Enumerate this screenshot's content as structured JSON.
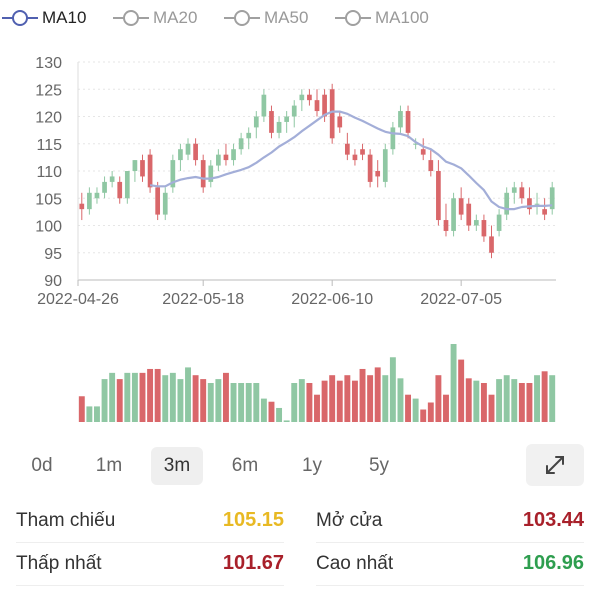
{
  "legend": [
    {
      "label": "MA10",
      "active": true
    },
    {
      "label": "MA20",
      "active": false
    },
    {
      "label": "MA50",
      "active": false
    },
    {
      "label": "MA100",
      "active": false
    }
  ],
  "colors": {
    "up": "#8fc7a3",
    "down": "#d9676a",
    "ma": "#a3aed8",
    "legend_active": "#5060b0",
    "legend_inactive": "#a0a0a0"
  },
  "chart_data": {
    "type": "candlestick",
    "ylim": [
      90,
      130
    ],
    "y_ticks": [
      90,
      95,
      100,
      105,
      110,
      115,
      120,
      125,
      130
    ],
    "x_tick_labels": [
      "2022-04-26",
      "2022-05-18",
      "2022-06-10",
      "2022-07-05"
    ],
    "x_tick_index": [
      0,
      16,
      33,
      50
    ],
    "candles": [
      [
        104,
        106,
        101,
        103
      ],
      [
        103,
        107,
        102,
        106
      ],
      [
        105,
        107,
        104,
        106
      ],
      [
        106,
        109,
        105,
        108
      ],
      [
        108,
        110,
        107,
        109
      ],
      [
        108,
        109,
        104,
        105
      ],
      [
        105,
        110,
        104,
        110
      ],
      [
        110,
        112,
        108,
        112
      ],
      [
        112,
        113,
        108,
        109
      ],
      [
        113,
        114,
        106,
        107
      ],
      [
        107,
        108,
        101,
        102
      ],
      [
        102,
        107,
        101,
        106
      ],
      [
        107,
        113,
        106,
        112
      ],
      [
        112,
        115,
        110,
        114
      ],
      [
        113,
        116,
        112,
        115
      ],
      [
        115,
        116,
        111,
        112
      ],
      [
        112,
        113,
        106,
        107
      ],
      [
        108,
        112,
        107,
        111
      ],
      [
        111,
        114,
        110,
        113
      ],
      [
        113,
        115,
        111,
        112
      ],
      [
        112,
        115,
        111,
        114
      ],
      [
        114,
        117,
        113,
        116
      ],
      [
        116,
        118,
        114,
        117
      ],
      [
        118,
        121,
        116,
        120
      ],
      [
        120,
        125,
        119,
        124
      ],
      [
        121,
        122,
        116,
        117
      ],
      [
        117,
        120,
        116,
        119
      ],
      [
        119,
        121,
        117,
        120
      ],
      [
        120,
        123,
        118,
        122
      ],
      [
        123,
        125,
        121,
        124
      ],
      [
        124,
        125,
        122,
        123
      ],
      [
        123,
        125,
        120,
        121
      ],
      [
        124,
        125,
        119,
        120
      ],
      [
        125,
        126,
        115,
        116
      ],
      [
        120,
        121,
        117,
        118
      ],
      [
        115,
        117,
        112,
        113
      ],
      [
        113,
        114,
        111,
        112
      ],
      [
        114,
        115,
        112,
        113
      ],
      [
        113,
        114,
        107,
        108
      ],
      [
        110,
        112,
        107,
        109
      ],
      [
        108,
        115,
        107,
        114
      ],
      [
        114,
        119,
        113,
        118
      ],
      [
        118,
        122,
        117,
        121
      ],
      [
        121,
        122,
        116,
        117
      ],
      [
        115,
        116,
        114,
        115
      ],
      [
        114,
        116,
        112,
        113
      ],
      [
        112,
        114,
        109,
        110
      ],
      [
        110,
        112,
        100,
        101
      ],
      [
        101,
        104,
        98,
        99
      ],
      [
        99,
        106,
        98,
        105
      ],
      [
        105,
        107,
        101,
        102
      ],
      [
        104,
        105,
        99,
        100
      ],
      [
        100,
        102,
        99,
        101
      ],
      [
        101,
        102,
        97,
        98
      ],
      [
        98,
        100,
        94,
        95
      ],
      [
        99,
        103,
        98,
        102
      ],
      [
        102,
        107,
        101,
        106
      ],
      [
        106,
        108,
        104,
        107
      ],
      [
        107,
        108,
        104,
        105
      ],
      [
        105,
        107,
        102,
        103
      ],
      [
        104,
        106,
        102,
        104
      ],
      [
        103,
        105,
        101,
        102
      ],
      [
        103,
        108,
        102,
        107
      ]
    ],
    "ma10": [
      null,
      null,
      null,
      null,
      null,
      null,
      null,
      null,
      null,
      107.4,
      107.2,
      107.2,
      107.9,
      108.4,
      108.7,
      108.9,
      108.6,
      108.6,
      108.9,
      109.4,
      109.8,
      110.2,
      110.7,
      111.5,
      112.5,
      113.4,
      114.5,
      115.3,
      116.2,
      117.3,
      118.3,
      119.3,
      120.3,
      120.9,
      120.9,
      120.5,
      119.8,
      119.2,
      118.5,
      117.8,
      117.2,
      116.9,
      116.8,
      116.4,
      115.3,
      114.5,
      114.0,
      113.0,
      111.7,
      111.2,
      110.5,
      109.2,
      107.8,
      106.5,
      104.4,
      103.4,
      103.0,
      103.0,
      103.4,
      103.5,
      103.6,
      103.6,
      103.7
    ],
    "volume": [
      0.33,
      0.2,
      0.2,
      0.55,
      0.63,
      0.55,
      0.63,
      0.63,
      0.63,
      0.68,
      0.68,
      0.6,
      0.63,
      0.55,
      0.7,
      0.6,
      0.55,
      0.5,
      0.55,
      0.63,
      0.5,
      0.5,
      0.5,
      0.5,
      0.3,
      0.26,
      0.18,
      0.02,
      0.5,
      0.55,
      0.5,
      0.35,
      0.53,
      0.6,
      0.53,
      0.6,
      0.53,
      0.68,
      0.6,
      0.7,
      0.6,
      0.83,
      0.56,
      0.35,
      0.3,
      0.16,
      0.25,
      0.6,
      0.35,
      1.0,
      0.8,
      0.56,
      0.53,
      0.5,
      0.35,
      0.55,
      0.6,
      0.55,
      0.5,
      0.5,
      0.6,
      0.65,
      0.6
    ]
  },
  "ranges": {
    "items": [
      "0d",
      "1m",
      "3m",
      "6m",
      "1y",
      "5y"
    ],
    "active": "3m"
  },
  "expand_icon": "expand-diagonal-icon",
  "stats": {
    "ref_label": "Tham chiếu",
    "ref_value": "105.15",
    "ref_color": "#e8b923",
    "open_label": "Mở cửa",
    "open_value": "103.44",
    "open_color": "#a8202a",
    "low_label": "Thấp nhất",
    "low_value": "101.67",
    "low_color": "#a8202a",
    "high_label": "Cao nhất",
    "high_value": "106.96",
    "high_color": "#2e9e4f"
  }
}
